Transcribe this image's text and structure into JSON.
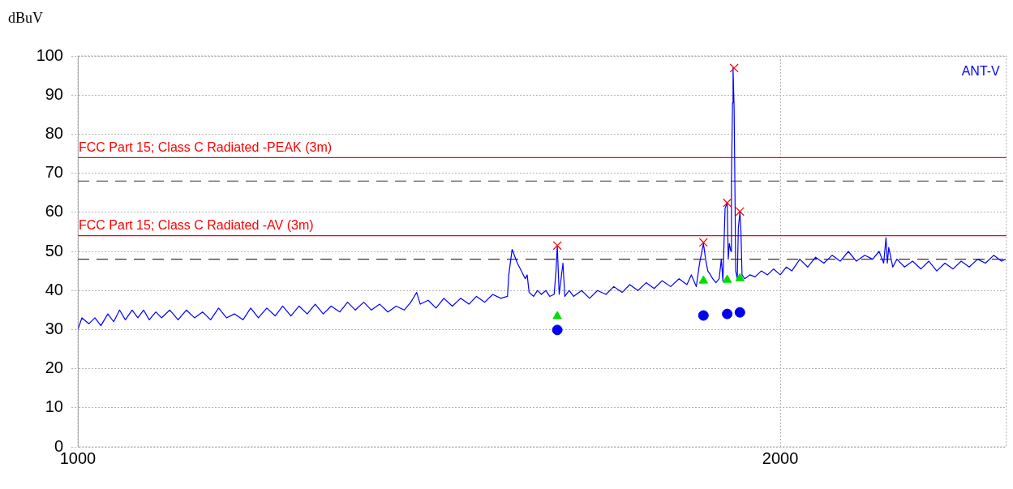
{
  "chart_data": {
    "type": "line",
    "ylabel": "dBuV",
    "log": "x",
    "xlim": [
      1000,
      2500
    ],
    "xticks": [
      1000,
      2000
    ],
    "ylim": [
      0,
      100
    ],
    "yticks": [
      0,
      10,
      20,
      30,
      40,
      50,
      60,
      70,
      80,
      90,
      100
    ],
    "grid": true,
    "legend": "top right",
    "ref_lines": [
      {
        "axis": "y",
        "value": 74,
        "label": "FCC Part 15; Class C Radiated -PEAK (3m)",
        "color": "#ff0000",
        "line_style": "solid"
      },
      {
        "axis": "y",
        "value": 54,
        "label": "FCC Part 15; Class C Radiated -AV (3m)",
        "color": "#ff0000",
        "line_style": "solid"
      },
      {
        "axis": "y",
        "value": 68,
        "color": "#4b2e2b",
        "line_style": "dashed"
      },
      {
        "axis": "y",
        "value": 48,
        "color": "#4b2e2b",
        "line_style": "dashed"
      }
    ],
    "series": [
      {
        "name": "ANT-V",
        "type": "line",
        "color": "#0000ff",
        "marker": "none",
        "x": [
          1000,
          1004,
          1011,
          1017,
          1023,
          1030,
          1036,
          1042,
          1048,
          1055,
          1061,
          1067,
          1073,
          1080,
          1086,
          1095,
          1104,
          1113,
          1122,
          1131,
          1140,
          1149,
          1158,
          1167,
          1177,
          1186,
          1195,
          1205,
          1215,
          1224,
          1234,
          1244,
          1254,
          1264,
          1274,
          1284,
          1295,
          1305,
          1315,
          1326,
          1336,
          1347,
          1358,
          1369,
          1380,
          1389,
          1397,
          1402,
          1413,
          1424,
          1435,
          1447,
          1459,
          1471,
          1482,
          1494,
          1506,
          1518,
          1528,
          1530,
          1535,
          1543,
          1549,
          1555,
          1558,
          1561,
          1568,
          1574,
          1580,
          1587,
          1593,
          1600,
          1603,
          1605,
          1608,
          1614,
          1617,
          1624,
          1631,
          1644,
          1657,
          1670,
          1684,
          1697,
          1711,
          1724,
          1738,
          1752,
          1766,
          1780,
          1795,
          1810,
          1824,
          1832,
          1841,
          1847,
          1854,
          1858,
          1862,
          1867,
          1871,
          1877,
          1883,
          1887,
          1890,
          1894,
          1898,
          1900,
          1902,
          1905,
          1906,
          1908,
          1909,
          1911,
          1913,
          1914,
          1917,
          1919,
          1922,
          1924,
          1926,
          1931,
          1941,
          1951,
          1963,
          1975,
          1987,
          2000,
          2012,
          2023,
          2039,
          2055,
          2071,
          2088,
          2105,
          2122,
          2139,
          2156,
          2174,
          2191,
          2205,
          2215,
          2220,
          2223,
          2226,
          2235,
          2244,
          2261,
          2279,
          2298,
          2316,
          2334,
          2353,
          2372,
          2391,
          2410,
          2430,
          2449,
          2469,
          2488,
          2498
        ],
        "values": [
          30,
          33,
          31.5,
          33,
          31,
          34,
          32,
          35,
          32.5,
          35,
          33,
          35,
          32.5,
          34.5,
          33,
          35,
          32.5,
          35,
          33,
          34.5,
          32.5,
          35.5,
          33,
          34,
          32.5,
          35.5,
          33,
          35.5,
          33.5,
          36,
          33.5,
          36,
          34,
          36.5,
          34,
          36,
          34.5,
          37,
          35,
          37,
          35,
          36.5,
          34.5,
          36,
          35,
          37,
          39.5,
          36.5,
          37.5,
          35.5,
          38,
          36,
          38,
          36.5,
          38.5,
          37,
          39,
          38,
          38.5,
          44,
          50.5,
          47,
          45,
          43,
          44,
          39.5,
          38.5,
          40,
          39,
          40,
          38.5,
          39,
          45,
          51.5,
          39,
          47,
          38.5,
          40,
          38.5,
          40,
          38,
          40,
          39,
          41,
          39.5,
          41.5,
          40,
          42,
          40.5,
          42.5,
          41,
          43,
          41.5,
          44,
          41,
          47,
          52,
          48,
          45,
          44,
          43,
          42,
          43,
          48,
          42.5,
          61,
          62.5,
          48,
          52,
          50,
          68,
          88,
          97,
          87,
          60,
          45,
          43,
          56,
          60,
          55,
          44,
          43,
          44,
          43.5,
          45,
          44,
          45.5,
          44,
          46,
          45,
          48,
          46,
          48.5,
          47,
          49,
          47.5,
          50,
          47.5,
          49,
          48,
          50,
          47,
          53.5,
          47,
          51,
          46,
          48,
          46,
          47.5,
          45.5,
          47.5,
          45,
          47,
          45.5,
          47.5,
          46,
          48,
          47,
          49,
          47.5,
          48
        ]
      },
      {
        "type": "scatter",
        "color": "#ff0000",
        "marker": "cross",
        "x": [
          1605,
          1854,
          1898,
          1911,
          1922
        ],
        "values": [
          51.5,
          52.3,
          62.4,
          96.9,
          60.2
        ]
      },
      {
        "type": "scatter",
        "color": "#00dd00",
        "marker": "triangle",
        "x": [
          1605,
          1854,
          1898,
          1922
        ],
        "values": [
          33.4,
          42.5,
          42.7,
          43.1
        ]
      },
      {
        "type": "scatter",
        "color": "#0000ee",
        "marker": "circle",
        "x": [
          1605,
          1854,
          1898,
          1922
        ],
        "values": [
          29.9,
          33.6,
          34.0,
          34.4
        ]
      }
    ]
  }
}
